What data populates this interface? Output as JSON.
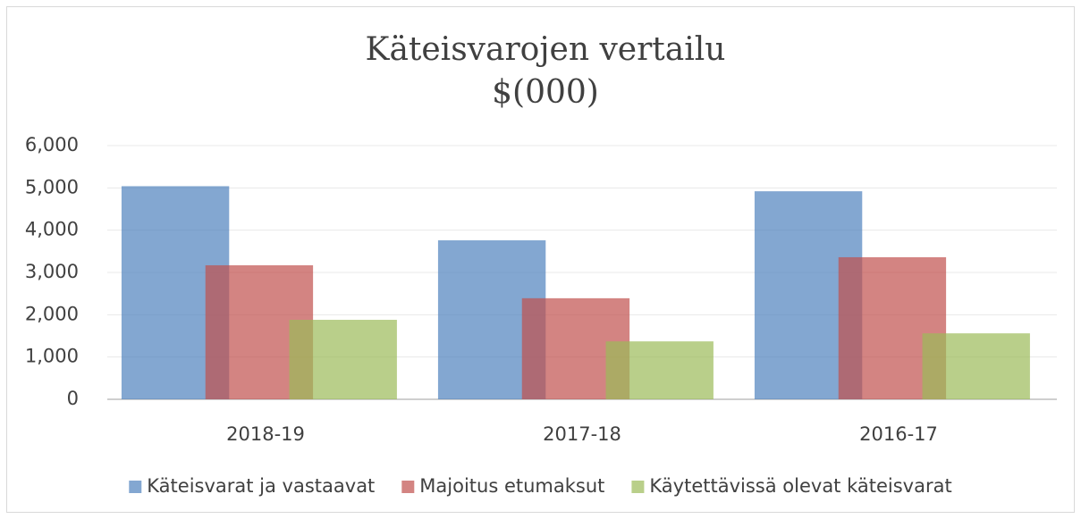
{
  "chart_data": {
    "type": "bar",
    "title": "Käteisvarojen vertailu",
    "subtitle": "$(000)",
    "categories": [
      "2018-19",
      "2017-18",
      "2016-17"
    ],
    "series": [
      {
        "name": "Käteisvarat ja vastaavat",
        "color": "#4f81bd",
        "values": [
          5040,
          3760,
          4920
        ]
      },
      {
        "name": "Majoitus etumaksut",
        "color": "#c0504d",
        "values": [
          3170,
          2390,
          3360
        ]
      },
      {
        "name": "Käytettävissä olevat käteisvarat",
        "color": "#9bbb59",
        "values": [
          1880,
          1370,
          1560
        ]
      }
    ],
    "ylim": [
      0,
      6000
    ],
    "yticks": [
      0,
      {
        "value": 1000,
        "label": "1,000"
      },
      {
        "value": 2000,
        "label": "2,000"
      },
      {
        "value": 3000,
        "label": "3,000"
      },
      {
        "value": 4000,
        "label": "4,000"
      },
      {
        "value": 5000,
        "label": "5,000"
      },
      {
        "value": 6000,
        "label": "6,000"
      }
    ],
    "grid": true,
    "legend": "bottom"
  }
}
